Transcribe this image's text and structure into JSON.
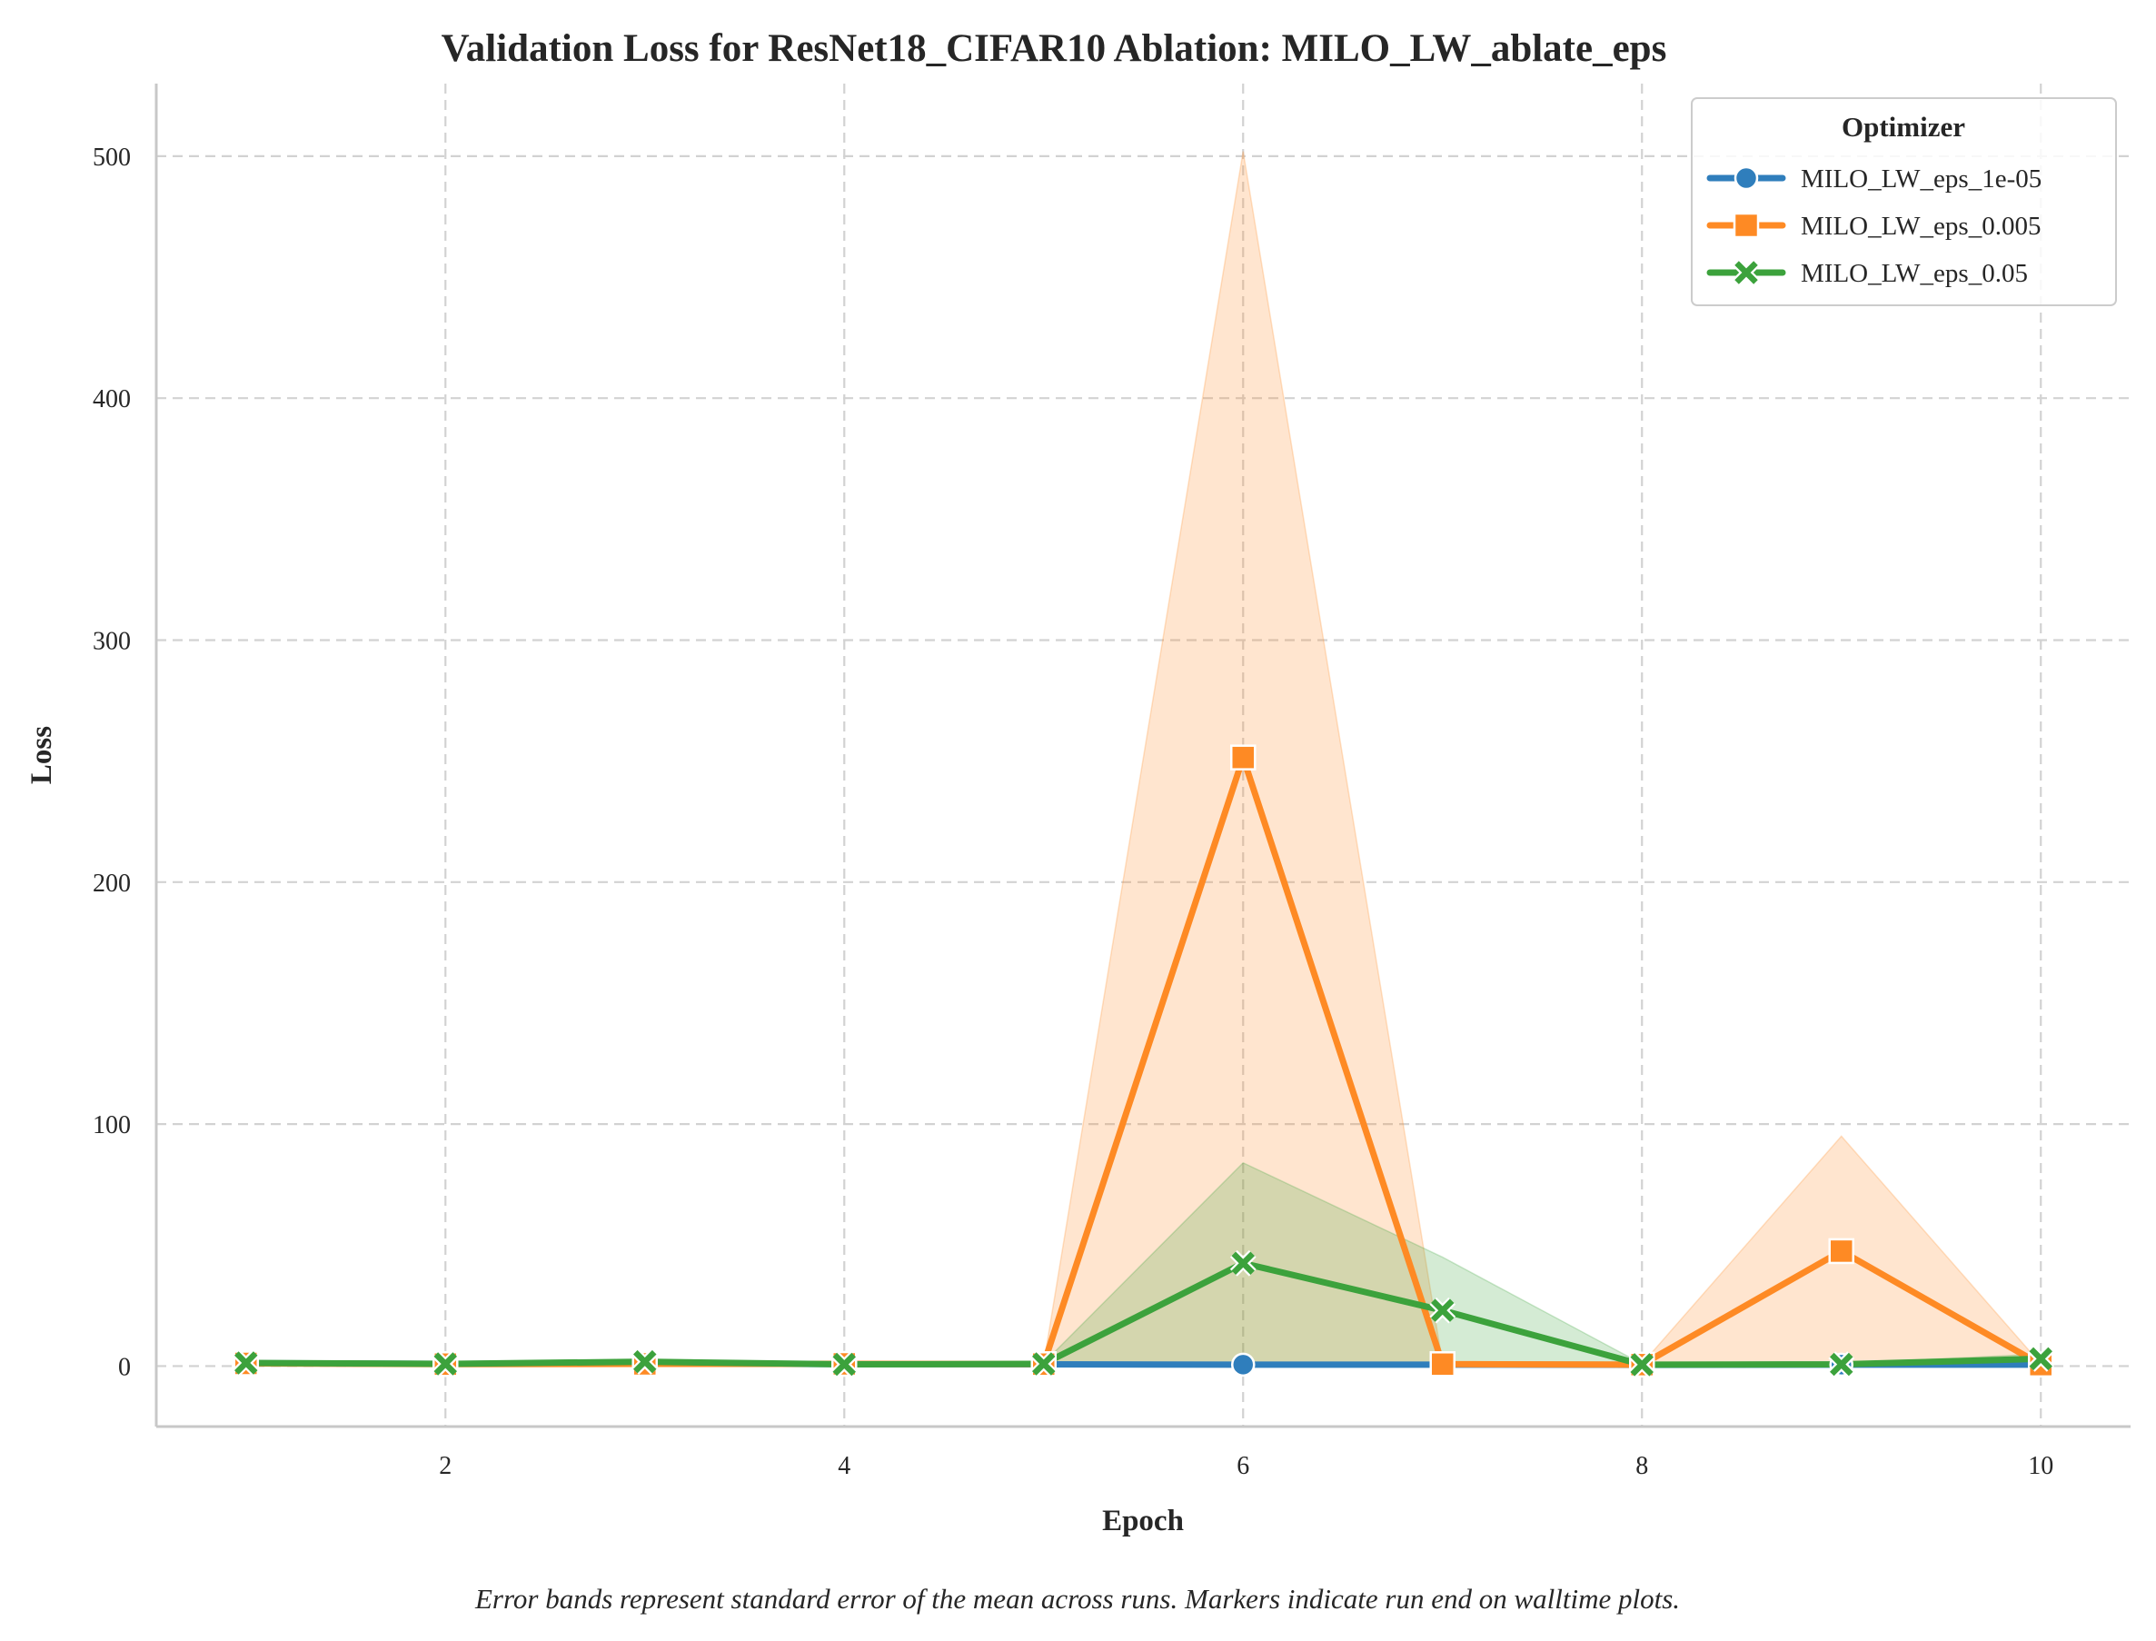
{
  "chart_data": {
    "type": "line",
    "title": "Validation Loss for ResNet18_CIFAR10 Ablation: MILO_LW_ablate_eps",
    "xlabel": "Epoch",
    "ylabel": "Loss",
    "xlim": [
      0.55,
      10.45
    ],
    "ylim": [
      -25,
      530
    ],
    "xticks": [
      2,
      4,
      6,
      8,
      10
    ],
    "yticks": [
      0,
      100,
      200,
      300,
      400,
      500
    ],
    "grid": true,
    "legend": {
      "title": "Optimizer",
      "placement": "top-right"
    },
    "x": [
      1,
      2,
      3,
      4,
      5,
      6,
      7,
      8,
      9,
      10
    ],
    "series": [
      {
        "name": "MILO_LW_eps_1e-05",
        "color": "#2f7ebc",
        "marker": "circle",
        "values": [
          1.2,
          0.9,
          1.1,
          0.8,
          0.7,
          0.6,
          0.6,
          0.5,
          0.6,
          0.6
        ],
        "band_low": [
          1.0,
          0.7,
          0.9,
          0.6,
          0.5,
          0.4,
          0.4,
          0.3,
          0.4,
          0.4
        ],
        "band_high": [
          1.4,
          1.1,
          1.3,
          1.0,
          0.9,
          0.8,
          0.8,
          0.7,
          0.8,
          0.8
        ]
      },
      {
        "name": "MILO_LW_eps_0.005",
        "color": "#fe8a24",
        "marker": "square",
        "values": [
          1.1,
          0.8,
          0.9,
          0.9,
          0.8,
          251.5,
          0.8,
          0.6,
          47.5,
          0.6
        ],
        "band_low": [
          0.6,
          0.5,
          0.4,
          0.5,
          0.5,
          0.0,
          0.5,
          0.3,
          0.0,
          0.3
        ],
        "band_high": [
          1.6,
          1.1,
          1.4,
          1.3,
          1.1,
          502.0,
          1.1,
          0.9,
          95.0,
          0.9
        ]
      },
      {
        "name": "MILO_LW_eps_0.05",
        "color": "#3ca23c",
        "marker": "x",
        "values": [
          1.3,
          0.9,
          1.8,
          0.7,
          0.9,
          42.5,
          23.0,
          0.6,
          0.7,
          3.0
        ],
        "band_low": [
          0.8,
          0.5,
          1.0,
          0.4,
          0.5,
          0.9,
          0.6,
          0.3,
          0.4,
          1.0
        ],
        "band_high": [
          1.8,
          1.3,
          2.6,
          1.0,
          1.3,
          84.0,
          45.0,
          0.9,
          1.0,
          5.0
        ]
      }
    ],
    "caption": "Error bands represent standard error of the mean across runs. Markers indicate run end on walltime plots."
  }
}
